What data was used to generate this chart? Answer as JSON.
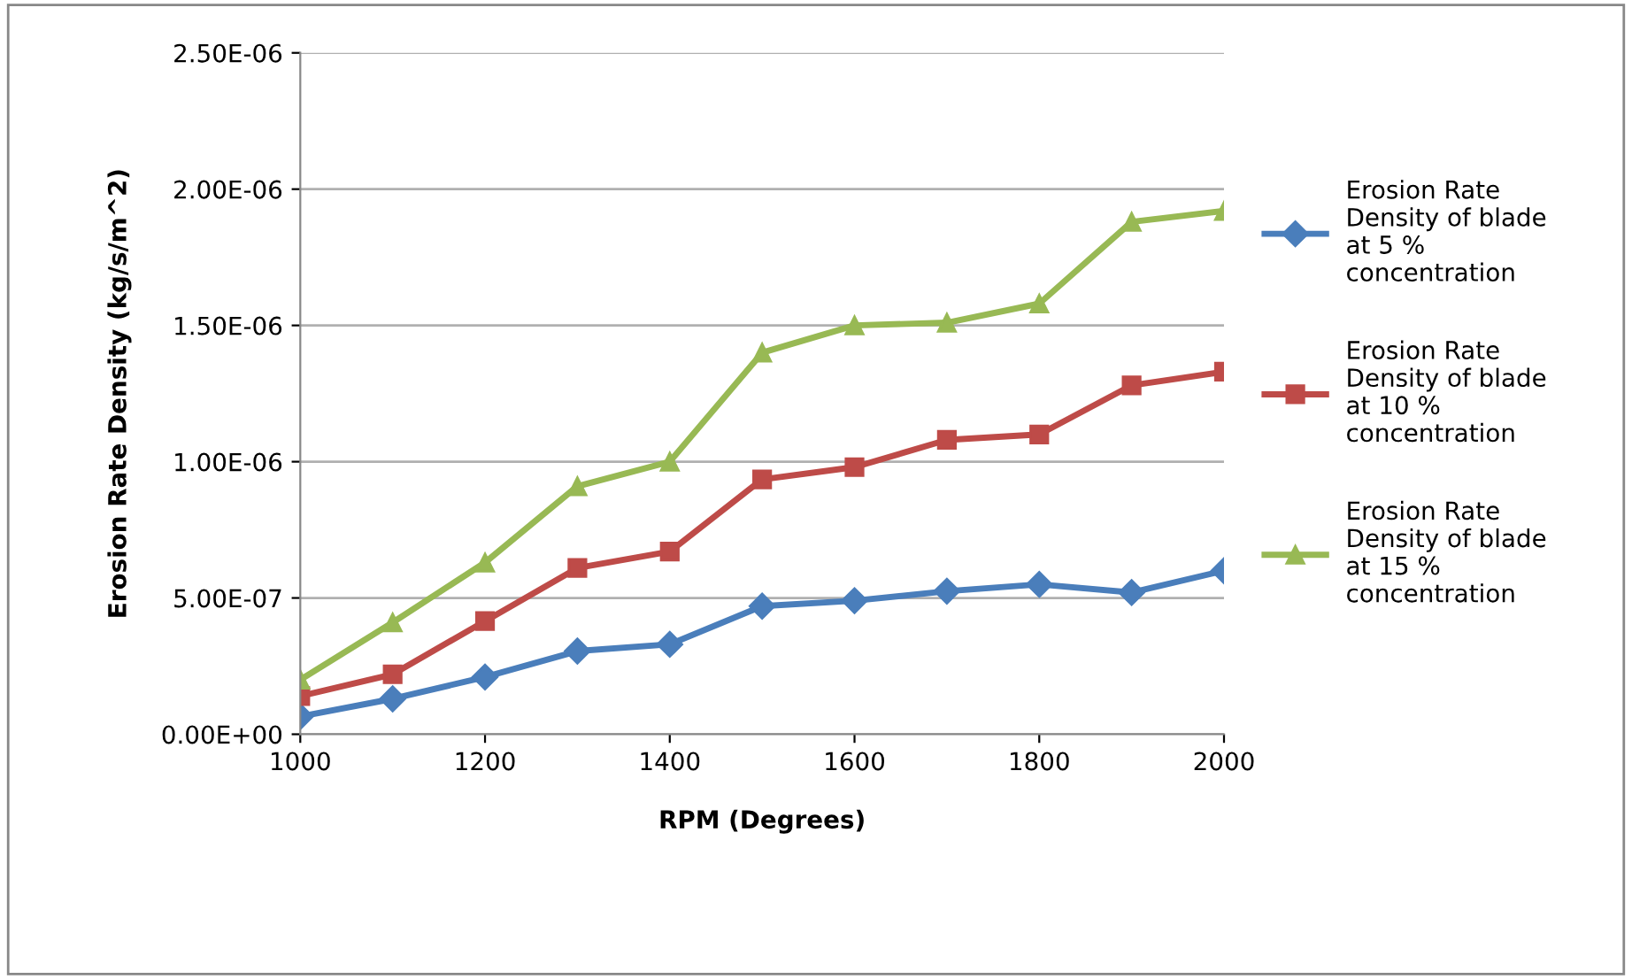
{
  "chart_data": {
    "type": "line",
    "xlabel": "RPM (Degrees)",
    "ylabel": "Erosion Rate Density (kg/s/m^2)",
    "x": [
      1000,
      1100,
      1200,
      1300,
      1400,
      1500,
      1600,
      1700,
      1800,
      1900,
      2000
    ],
    "series": [
      {
        "name": "Erosion Rate Density of blade at 5 % concentration",
        "color": "#4a7ebb",
        "marker": "diamond",
        "values": [
          6.5e-08,
          1.3e-07,
          2.1e-07,
          3.05e-07,
          3.3e-07,
          4.7e-07,
          4.9e-07,
          5.25e-07,
          5.5e-07,
          5.2e-07,
          6e-07
        ]
      },
      {
        "name": "Erosion Rate Density of blade at 10 % concentration",
        "color": "#be4b48",
        "marker": "square",
        "values": [
          1.4e-07,
          2.2e-07,
          4.15e-07,
          6.1e-07,
          6.7e-07,
          9.35e-07,
          9.8e-07,
          1.08e-06,
          1.1e-06,
          1.28e-06,
          1.33e-06
        ]
      },
      {
        "name": "Erosion Rate Density of blade at 15 % concentration",
        "color": "#98b954",
        "marker": "triangle",
        "values": [
          2e-07,
          4.1e-07,
          6.3e-07,
          9.1e-07,
          1e-06,
          1.4e-06,
          1.5e-06,
          1.51e-06,
          1.58e-06,
          1.88e-06,
          1.92e-06
        ]
      }
    ],
    "xlim": [
      1000,
      2000
    ],
    "xticks": [
      1000,
      1200,
      1400,
      1600,
      1800,
      2000
    ],
    "ylim": [
      0,
      2.5e-06
    ],
    "yticks": [
      {
        "value": 0,
        "label": "0.00E+00"
      },
      {
        "value": 5e-07,
        "label": "5.00E-07"
      },
      {
        "value": 1e-06,
        "label": "1.00E-06"
      },
      {
        "value": 1.5e-06,
        "label": "1.50E-06"
      },
      {
        "value": 2e-06,
        "label": "2.00E-06"
      },
      {
        "value": 2.5e-06,
        "label": "2.50E-06"
      }
    ],
    "grid": "y",
    "legend": "right",
    "line_style": "solid"
  }
}
